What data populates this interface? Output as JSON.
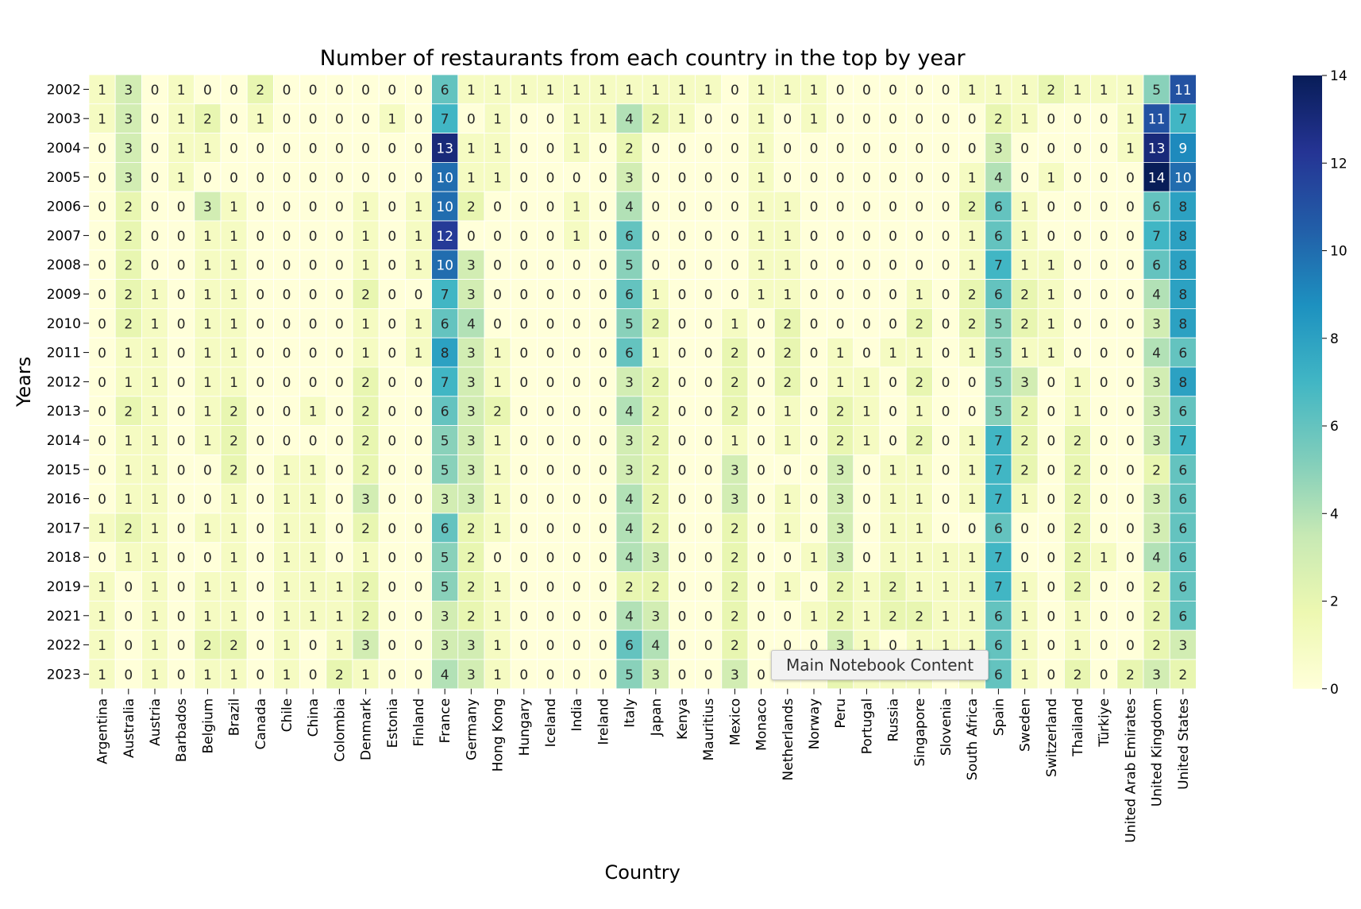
{
  "chart_data": {
    "type": "heatmap",
    "title": "Number of restaurants from each country in the top by year",
    "xlabel": "Country",
    "ylabel": "Years",
    "x_categories": [
      "Argentina",
      "Australia",
      "Austria",
      "Barbados",
      "Belgium",
      "Brazil",
      "Canada",
      "Chile",
      "China",
      "Colombia",
      "Denmark",
      "Estonia",
      "Finland",
      "France",
      "Germany",
      "Hong Kong",
      "Hungary",
      "Iceland",
      "India",
      "Ireland",
      "Italy",
      "Japan",
      "Kenya",
      "Mauritius",
      "Mexico",
      "Monaco",
      "Netherlands",
      "Norway",
      "Peru",
      "Portugal",
      "Russia",
      "Singapore",
      "Slovenia",
      "South Africa",
      "Spain",
      "Sweden",
      "Switzerland",
      "Thailand",
      "Türkiye",
      "United Arab Emirates",
      "United Kingdom",
      "United States"
    ],
    "y_categories": [
      "2002",
      "2003",
      "2004",
      "2005",
      "2006",
      "2007",
      "2008",
      "2009",
      "2010",
      "2011",
      "2012",
      "2013",
      "2014",
      "2015",
      "2016",
      "2017",
      "2018",
      "2019",
      "2021",
      "2022",
      "2023"
    ],
    "values": [
      [
        1,
        3,
        0,
        1,
        0,
        0,
        2,
        0,
        0,
        0,
        0,
        0,
        0,
        6,
        1,
        1,
        1,
        1,
        1,
        1,
        1,
        1,
        1,
        1,
        0,
        1,
        1,
        1,
        0,
        0,
        0,
        0,
        0,
        1,
        1,
        1,
        2,
        1,
        1,
        1,
        5,
        11
      ],
      [
        1,
        3,
        0,
        1,
        2,
        0,
        1,
        0,
        0,
        0,
        0,
        1,
        0,
        7,
        0,
        1,
        0,
        0,
        1,
        1,
        4,
        2,
        1,
        0,
        0,
        1,
        0,
        1,
        0,
        0,
        0,
        0,
        0,
        0,
        2,
        1,
        0,
        0,
        0,
        1,
        11,
        7
      ],
      [
        0,
        3,
        0,
        1,
        1,
        0,
        0,
        0,
        0,
        0,
        0,
        0,
        0,
        13,
        1,
        1,
        0,
        0,
        1,
        0,
        2,
        0,
        0,
        0,
        0,
        1,
        0,
        0,
        0,
        0,
        0,
        0,
        0,
        0,
        3,
        0,
        0,
        0,
        0,
        1,
        13,
        9
      ],
      [
        0,
        3,
        0,
        1,
        0,
        0,
        0,
        0,
        0,
        0,
        0,
        0,
        0,
        10,
        1,
        1,
        0,
        0,
        0,
        0,
        3,
        0,
        0,
        0,
        0,
        1,
        0,
        0,
        0,
        0,
        0,
        0,
        0,
        1,
        4,
        0,
        1,
        0,
        0,
        0,
        14,
        10
      ],
      [
        0,
        2,
        0,
        0,
        3,
        1,
        0,
        0,
        0,
        0,
        1,
        0,
        1,
        10,
        2,
        0,
        0,
        0,
        1,
        0,
        4,
        0,
        0,
        0,
        0,
        1,
        1,
        0,
        0,
        0,
        0,
        0,
        0,
        2,
        6,
        1,
        0,
        0,
        0,
        0,
        6,
        8
      ],
      [
        0,
        2,
        0,
        0,
        1,
        1,
        0,
        0,
        0,
        0,
        1,
        0,
        1,
        12,
        0,
        0,
        0,
        0,
        1,
        0,
        6,
        0,
        0,
        0,
        0,
        1,
        1,
        0,
        0,
        0,
        0,
        0,
        0,
        1,
        6,
        1,
        0,
        0,
        0,
        0,
        7,
        8
      ],
      [
        0,
        2,
        0,
        0,
        1,
        1,
        0,
        0,
        0,
        0,
        1,
        0,
        1,
        10,
        3,
        0,
        0,
        0,
        0,
        0,
        5,
        0,
        0,
        0,
        0,
        1,
        1,
        0,
        0,
        0,
        0,
        0,
        0,
        1,
        7,
        1,
        1,
        0,
        0,
        0,
        6,
        8
      ],
      [
        0,
        2,
        1,
        0,
        1,
        1,
        0,
        0,
        0,
        0,
        2,
        0,
        0,
        7,
        3,
        0,
        0,
        0,
        0,
        0,
        6,
        1,
        0,
        0,
        0,
        1,
        1,
        0,
        0,
        0,
        0,
        1,
        0,
        2,
        6,
        2,
        1,
        0,
        0,
        0,
        4,
        8
      ],
      [
        0,
        2,
        1,
        0,
        1,
        1,
        0,
        0,
        0,
        0,
        1,
        0,
        1,
        6,
        4,
        0,
        0,
        0,
        0,
        0,
        5,
        2,
        0,
        0,
        1,
        0,
        2,
        0,
        0,
        0,
        0,
        2,
        0,
        2,
        5,
        2,
        1,
        0,
        0,
        0,
        3,
        8
      ],
      [
        0,
        1,
        1,
        0,
        1,
        1,
        0,
        0,
        0,
        0,
        1,
        0,
        1,
        8,
        3,
        1,
        0,
        0,
        0,
        0,
        6,
        1,
        0,
        0,
        2,
        0,
        2,
        0,
        1,
        0,
        1,
        1,
        0,
        1,
        5,
        1,
        1,
        0,
        0,
        0,
        4,
        6
      ],
      [
        0,
        1,
        1,
        0,
        1,
        1,
        0,
        0,
        0,
        0,
        2,
        0,
        0,
        7,
        3,
        1,
        0,
        0,
        0,
        0,
        3,
        2,
        0,
        0,
        2,
        0,
        2,
        0,
        1,
        1,
        0,
        2,
        0,
        0,
        5,
        3,
        0,
        1,
        0,
        0,
        3,
        8
      ],
      [
        0,
        2,
        1,
        0,
        1,
        2,
        0,
        0,
        1,
        0,
        2,
        0,
        0,
        6,
        3,
        2,
        0,
        0,
        0,
        0,
        4,
        2,
        0,
        0,
        2,
        0,
        1,
        0,
        2,
        1,
        0,
        1,
        0,
        0,
        5,
        2,
        0,
        1,
        0,
        0,
        3,
        6
      ],
      [
        0,
        1,
        1,
        0,
        1,
        2,
        0,
        0,
        0,
        0,
        2,
        0,
        0,
        5,
        3,
        1,
        0,
        0,
        0,
        0,
        3,
        2,
        0,
        0,
        1,
        0,
        1,
        0,
        2,
        1,
        0,
        2,
        0,
        1,
        7,
        2,
        0,
        2,
        0,
        0,
        3,
        7
      ],
      [
        0,
        1,
        1,
        0,
        0,
        2,
        0,
        1,
        1,
        0,
        2,
        0,
        0,
        5,
        3,
        1,
        0,
        0,
        0,
        0,
        3,
        2,
        0,
        0,
        3,
        0,
        0,
        0,
        3,
        0,
        1,
        1,
        0,
        1,
        7,
        2,
        0,
        2,
        0,
        0,
        2,
        6
      ],
      [
        0,
        1,
        1,
        0,
        0,
        1,
        0,
        1,
        1,
        0,
        3,
        0,
        0,
        3,
        3,
        1,
        0,
        0,
        0,
        0,
        4,
        2,
        0,
        0,
        3,
        0,
        1,
        0,
        3,
        0,
        1,
        1,
        0,
        1,
        7,
        1,
        0,
        2,
        0,
        0,
        3,
        6
      ],
      [
        1,
        2,
        1,
        0,
        1,
        1,
        0,
        1,
        1,
        0,
        2,
        0,
        0,
        6,
        2,
        1,
        0,
        0,
        0,
        0,
        4,
        2,
        0,
        0,
        2,
        0,
        1,
        0,
        3,
        0,
        1,
        1,
        0,
        0,
        6,
        0,
        0,
        2,
        0,
        0,
        3,
        6
      ],
      [
        0,
        1,
        1,
        0,
        0,
        1,
        0,
        1,
        1,
        0,
        1,
        0,
        0,
        5,
        2,
        0,
        0,
        0,
        0,
        0,
        4,
        3,
        0,
        0,
        2,
        0,
        0,
        1,
        3,
        0,
        1,
        1,
        1,
        1,
        7,
        0,
        0,
        2,
        1,
        0,
        4,
        6
      ],
      [
        1,
        0,
        1,
        0,
        1,
        1,
        0,
        1,
        1,
        1,
        2,
        0,
        0,
        5,
        2,
        1,
        0,
        0,
        0,
        0,
        2,
        2,
        0,
        0,
        2,
        0,
        1,
        0,
        2,
        1,
        2,
        1,
        1,
        1,
        7,
        1,
        0,
        2,
        0,
        0,
        2,
        6
      ],
      [
        1,
        0,
        1,
        0,
        1,
        1,
        0,
        1,
        1,
        1,
        2,
        0,
        0,
        3,
        2,
        1,
        0,
        0,
        0,
        0,
        4,
        3,
        0,
        0,
        2,
        0,
        0,
        1,
        2,
        1,
        2,
        2,
        1,
        1,
        6,
        1,
        0,
        1,
        0,
        0,
        2,
        6
      ],
      [
        1,
        0,
        1,
        0,
        2,
        2,
        0,
        1,
        0,
        1,
        3,
        0,
        0,
        3,
        3,
        1,
        0,
        0,
        0,
        0,
        6,
        4,
        0,
        0,
        2,
        0,
        0,
        0,
        3,
        1,
        0,
        1,
        1,
        1,
        6,
        1,
        0,
        1,
        0,
        0,
        2,
        3
      ],
      [
        1,
        0,
        1,
        0,
        1,
        1,
        0,
        1,
        0,
        2,
        1,
        0,
        0,
        4,
        3,
        1,
        0,
        0,
        0,
        0,
        5,
        3,
        0,
        0,
        3,
        0,
        0,
        0,
        2,
        1,
        1,
        1,
        0,
        1,
        6,
        1,
        0,
        2,
        0,
        2,
        3,
        2
      ]
    ],
    "vmin": 0,
    "vmax": 14,
    "colorbar_ticks": [
      0,
      2,
      4,
      6,
      8,
      10,
      12,
      14
    ],
    "colormap": "YlGnBu",
    "colormap_stops": [
      "#ffffd9",
      "#edf8b1",
      "#c7e9b4",
      "#7fcdbb",
      "#41b6c4",
      "#1d91c0",
      "#225ea8",
      "#253494",
      "#081d58"
    ],
    "annotations": true,
    "grid": false
  },
  "overlay": {
    "tooltip_text": "Main Notebook Content"
  }
}
